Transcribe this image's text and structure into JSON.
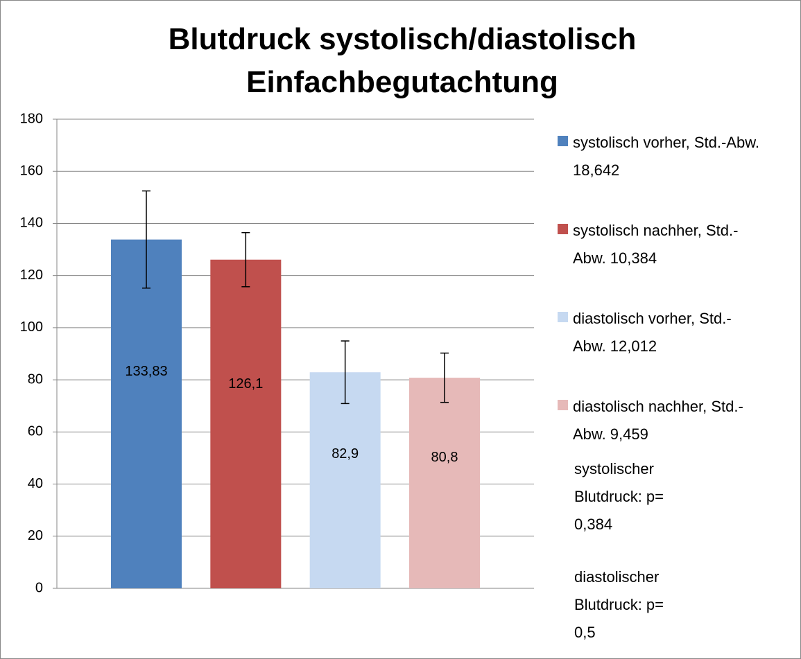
{
  "chart_data": {
    "type": "bar",
    "title": "Blutdruck systolisch/diastolisch Einfachbegutachtung",
    "ylim": [
      0,
      180
    ],
    "yticks": [
      0,
      20,
      40,
      60,
      80,
      100,
      120,
      140,
      160,
      180
    ],
    "grid": true,
    "error_bars": true,
    "series": [
      {
        "name": "systolisch vorher, Std.-Abw. 18,642",
        "color": "#4f81bd",
        "values": [
          133.83
        ],
        "value_labels": [
          "133,83"
        ],
        "error": [
          18.642
        ]
      },
      {
        "name": "systolisch nachher, Std.-Abw. 10,384",
        "color": "#c0504d",
        "values": [
          126.1
        ],
        "value_labels": [
          "126,1"
        ],
        "error": [
          10.384
        ]
      },
      {
        "name": "diastolisch vorher, Std.-Abw. 12,012",
        "color": "#c6d9f1",
        "values": [
          82.9
        ],
        "value_labels": [
          "82,9"
        ],
        "error": [
          12.012
        ]
      },
      {
        "name": "diastolisch nachher, Std.-Abw. 9,459",
        "color": "#e6b9b8",
        "values": [
          80.8
        ],
        "value_labels": [
          "80,8"
        ],
        "error": [
          9.459
        ]
      }
    ],
    "annotations": [
      "systolischer Blutdruck: p= 0,384",
      "diastolischer Blutdruck: p= 0,5"
    ]
  }
}
